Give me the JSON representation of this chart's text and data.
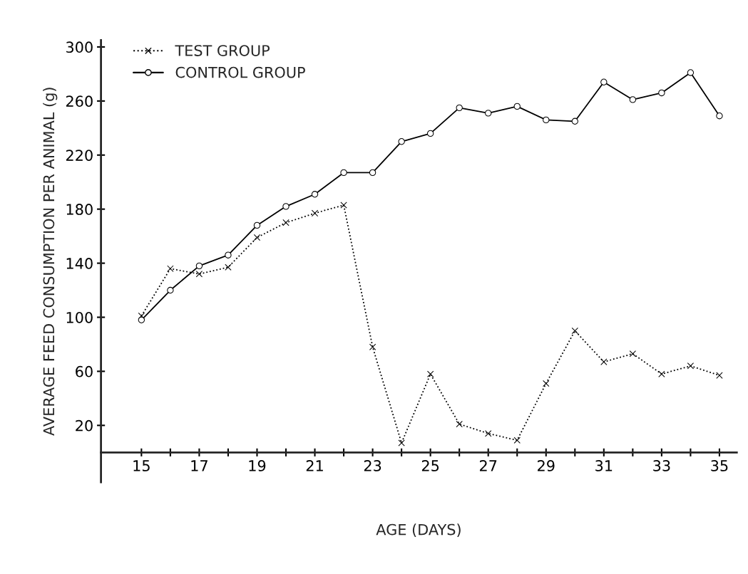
{
  "chart_data": {
    "type": "line",
    "xlabel": "AGE (DAYS)",
    "ylabel": "AVERAGE FEED CONSUMPTION PER ANIMAL (g)",
    "x": [
      15,
      16,
      17,
      18,
      19,
      20,
      21,
      22,
      23,
      24,
      25,
      26,
      27,
      28,
      29,
      30,
      31,
      32,
      33,
      34,
      35
    ],
    "series": [
      {
        "name": "TEST GROUP",
        "color": "#000000",
        "marker": "cross",
        "line_style": "dotted",
        "values": [
          101,
          136,
          132,
          137,
          159,
          170,
          177,
          183,
          78,
          7,
          58,
          21,
          14,
          9,
          51,
          90,
          67,
          73,
          58,
          64,
          57
        ]
      },
      {
        "name": "CONTROL GROUP",
        "color": "#000000",
        "marker": "circle",
        "line_style": "solid",
        "values": [
          98,
          120,
          138,
          146,
          168,
          182,
          191,
          207,
          207,
          230,
          236,
          255,
          251,
          256,
          246,
          245,
          274,
          261,
          266,
          281,
          249
        ]
      }
    ],
    "xlim": [
      13.6,
      35.6
    ],
    "ylim": [
      -22,
      305
    ],
    "xticks": [
      15,
      {
        "value": 16,
        "label": null
      },
      17,
      {
        "value": 18,
        "label": null
      },
      19,
      {
        "value": 20,
        "label": null
      },
      21,
      {
        "value": 22,
        "label": null
      },
      23,
      {
        "value": 24,
        "label": null
      },
      25,
      {
        "value": 26,
        "label": null
      },
      27,
      {
        "value": 28,
        "label": null
      },
      29,
      {
        "value": 30,
        "label": null
      },
      31,
      {
        "value": 32,
        "label": null
      },
      33,
      {
        "value": 34,
        "label": null
      },
      35
    ],
    "yticks": [
      20,
      60,
      100,
      140,
      180,
      220,
      260,
      300
    ],
    "grid": false,
    "legend": "top left"
  }
}
